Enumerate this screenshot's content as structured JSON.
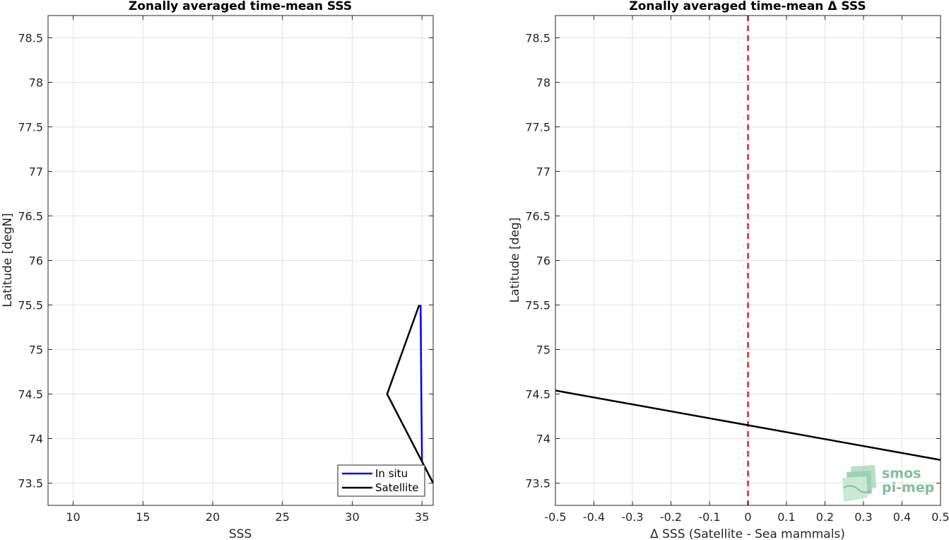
{
  "chart_data": [
    {
      "type": "line",
      "title": "Zonally averaged time-mean SSS",
      "xlabel": "SSS",
      "ylabel": "Latitude [degN]",
      "xlim": [
        8.2,
        35.8
      ],
      "ylim": [
        73.25,
        78.75
      ],
      "xticks": [
        10,
        15,
        20,
        25,
        30,
        35
      ],
      "yticks": [
        73.5,
        74,
        74.5,
        75,
        75.5,
        76,
        76.5,
        77,
        77.5,
        78,
        78.5
      ],
      "grid": true,
      "legend": "bottom-right",
      "series": [
        {
          "name": "In situ",
          "color": "#0000ff",
          "x": [
            34.9,
            34.95,
            35.0
          ],
          "y": [
            75.5,
            74.5,
            73.75
          ]
        },
        {
          "name": "Satellite",
          "color": "#000000",
          "x": [
            34.8,
            32.5,
            35.8
          ],
          "y": [
            75.5,
            74.5,
            73.5
          ]
        }
      ]
    },
    {
      "type": "line",
      "title": "Zonally averaged time-mean Δ SSS",
      "xlabel": "Δ SSS (Satellite - Sea mammals)",
      "ylabel": "Latitude [deg]",
      "xlim": [
        -0.5,
        0.5
      ],
      "ylim": [
        73.25,
        78.75
      ],
      "xticks": [
        -0.5,
        -0.4,
        -0.3,
        -0.2,
        -0.1,
        0,
        0.1,
        0.2,
        0.3,
        0.4,
        0.5
      ],
      "yticks": [
        73.5,
        74,
        74.5,
        75,
        75.5,
        76,
        76.5,
        77,
        77.5,
        78,
        78.5
      ],
      "grid": true,
      "reference_line": {
        "x": 0,
        "color": "#e8202a",
        "style": "dashed"
      },
      "series": [
        {
          "color": "#000000",
          "x": [
            -0.5,
            0.5
          ],
          "y": [
            74.54,
            73.76
          ]
        }
      ]
    }
  ],
  "watermark": {
    "line1": "smos",
    "line2": "pi-mep"
  }
}
